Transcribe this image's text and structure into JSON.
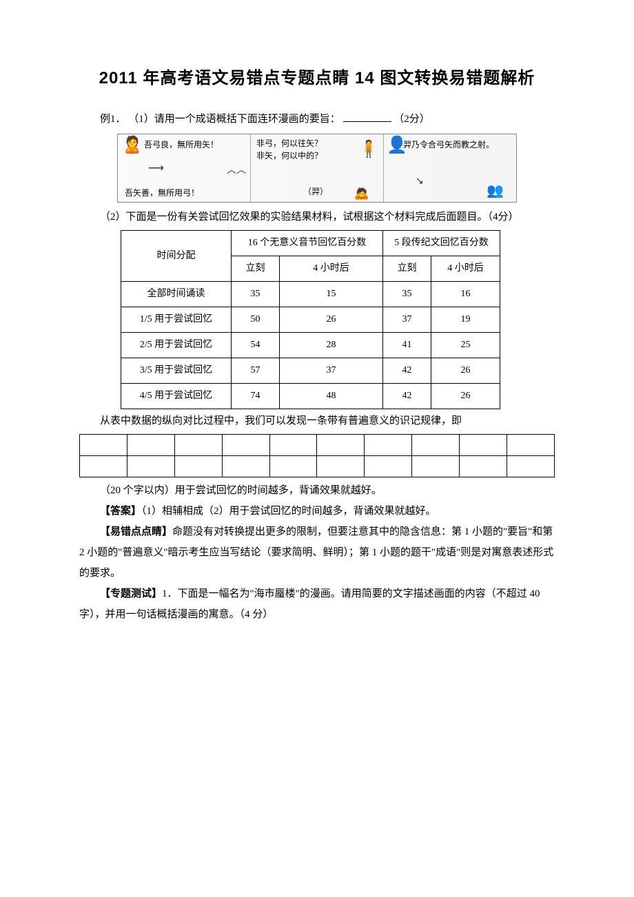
{
  "title": "2011 年高考语文易错点专题点睛 14 图文转换易错题解析",
  "example1": {
    "label": "例1．",
    "q1_prefix": "（1）请用一个成语概括下面连环漫画的要旨：",
    "q1_points": "（2分）"
  },
  "comic": {
    "p1a": "吾弓良，無所用矢！",
    "p1b": "吾矢善，無所用弓！",
    "p2a": "非弓，何以往矢？",
    "p2b": "非矢，何以中的？",
    "p2c": "（羿）",
    "p3": "羿乃令合弓矢而教之射。"
  },
  "q2_text": "（2）下面是一份有关尝试回忆效果的实验结果材料，试根据这个材料完成后面题目。（4分）",
  "table1": {
    "col_group1": "16 个无意义音节回忆百分数",
    "col_group2": "5 段传纪文回忆百分数",
    "row_header": "时间分配",
    "sub_c1": "立刻",
    "sub_c2": "4 小时后",
    "sub_c3": "立刻",
    "sub_c4": "4 小时后",
    "rows": [
      {
        "label": "全部时间诵读",
        "v": [
          "35",
          "15",
          "35",
          "16"
        ]
      },
      {
        "label": "1/5 用于尝试回忆",
        "v": [
          "50",
          "26",
          "37",
          "19"
        ]
      },
      {
        "label": "2/5 用于尝试回忆",
        "v": [
          "54",
          "28",
          "41",
          "25"
        ]
      },
      {
        "label": "3/5 用于尝试回忆",
        "v": [
          "57",
          "37",
          "42",
          "26"
        ]
      },
      {
        "label": "4/5 用于尝试回忆",
        "v": [
          "74",
          "48",
          "42",
          "26"
        ]
      }
    ],
    "col_widths": {
      "c0": 160,
      "c1": 70,
      "c2": 150,
      "c3": 70,
      "c4": 100
    }
  },
  "after_table_text": "从表中数据的纵向对比过程中，我们可以发现一条带有普遍意义的识记规律，即",
  "blank_grid": {
    "cols": 10,
    "rows": 2
  },
  "hint_text": "（20 个字以内）用于尝试回忆的时间越多，背诵效果就越好。",
  "answer_label": "【答案】",
  "answer_text": "（1）相辅相成（2）用于尝试回忆的时间越多，背诵效果就越好。",
  "tip_label": "【易错点点睛】",
  "tip_text": "命题没有对转换提出更多的限制，但要注意其中的隐含信息：第 1 小题的\"要旨\"和第 2 小题的\"普遍意义\"暗示考生应当写结论（要求简明、鲜明）；第 1 小题的题干\"成语\"则是对寓意表述形式的要求。",
  "test_label": "【专题测试】",
  "test_num": "1．",
  "test_text": "下面是一幅名为\"海市蜃楼\"的漫画。请用简要的文字描述画面的内容（不超过 40 字），并用一句话概括漫画的寓意。（4 分）"
}
